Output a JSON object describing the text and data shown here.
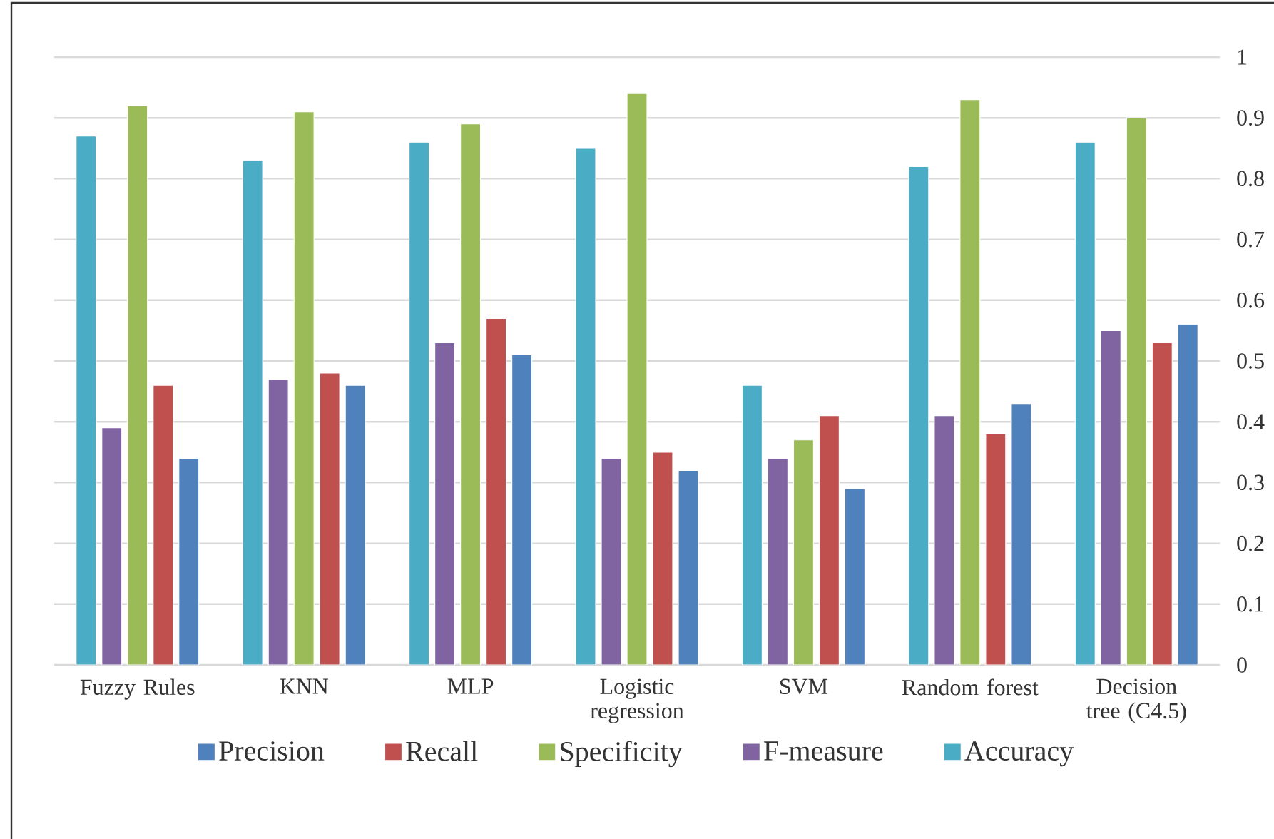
{
  "chart_data": {
    "type": "bar",
    "categories": [
      "Fuzzy Rules",
      "KNN",
      "MLP",
      "Logistic regression",
      "SVM",
      "Random forest",
      "Decision tree (C4.5)"
    ],
    "series": [
      {
        "name": "Precision",
        "color": "#4f81bd",
        "values": [
          0.34,
          0.46,
          0.51,
          0.32,
          0.29,
          0.43,
          0.56
        ]
      },
      {
        "name": "Recall",
        "color": "#c0504d",
        "values": [
          0.46,
          0.48,
          0.57,
          0.35,
          0.41,
          0.38,
          0.53
        ]
      },
      {
        "name": "Specificity",
        "color": "#9bbb59",
        "values": [
          0.92,
          0.91,
          0.89,
          0.94,
          0.37,
          0.93,
          0.9
        ]
      },
      {
        "name": "F-measure",
        "color": "#8064a2",
        "values": [
          0.39,
          0.47,
          0.53,
          0.34,
          0.34,
          0.41,
          0.55
        ]
      },
      {
        "name": "Accuracy",
        "color": "#4bacc6",
        "values": [
          0.87,
          0.83,
          0.86,
          0.85,
          0.46,
          0.82,
          0.86
        ]
      }
    ],
    "ylim": [
      0,
      1
    ],
    "yticks": [
      0,
      0.1,
      0.2,
      0.3,
      0.4,
      0.5,
      0.6,
      0.7,
      0.8,
      0.9,
      1
    ],
    "grid": "y",
    "legend": "bottom"
  }
}
